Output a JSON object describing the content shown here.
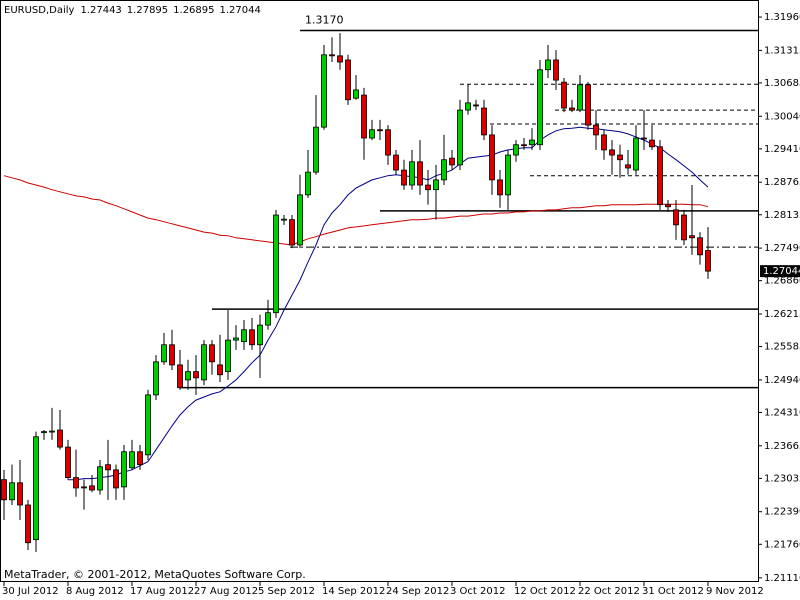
{
  "chart_data": {
    "type": "candlestick",
    "symbol": "EURUSD,Daily",
    "watermark": "MetaTrader, © 2001-2012, MetaQuotes Software Corp.",
    "categories": [
      "30 Jul 2012",
      null,
      null,
      null,
      null,
      null,
      null,
      null,
      "8 Aug 2012",
      null,
      null,
      null,
      null,
      null,
      null,
      null,
      "17 Aug 2012",
      null,
      null,
      null,
      null,
      null,
      null,
      null,
      "27 Aug 2012",
      null,
      null,
      null,
      null,
      null,
      null,
      null,
      "5 Sep 2012",
      null,
      null,
      null,
      null,
      null,
      null,
      null,
      "14 Sep 2012",
      null,
      null,
      null,
      null,
      null,
      null,
      null,
      "24 Sep 2012",
      null,
      null,
      null,
      null,
      null,
      null,
      null,
      "3 Oct 2012",
      null,
      null,
      null,
      null,
      null,
      null,
      null,
      "12 Oct 2012",
      null,
      null,
      null,
      null,
      null,
      null,
      null,
      "22 Oct 2012",
      null,
      null,
      null,
      null,
      null,
      null,
      null,
      "31 Oct 2012",
      null,
      null,
      null,
      null,
      null,
      null,
      null,
      "9 Nov 2012"
    ],
    "open": [
      1.2301,
      1.2262,
      1.2295,
      1.2252,
      1.2185,
      1.2392,
      1.2394,
      1.2397,
      1.2364,
      1.2305,
      1.2287,
      1.2289,
      1.2281,
      1.233,
      1.232,
      1.2287,
      1.2324,
      1.2355,
      1.2349,
      1.2465,
      1.2529,
      1.2562,
      1.2523,
      1.2494,
      1.251,
      1.2494,
      1.2562,
      1.2523,
      1.251,
      1.2571,
      1.2568,
      1.2591,
      1.2562,
      1.26,
      1.2624,
      1.2804,
      1.2804,
      1.2755,
      1.2852,
      1.2896,
      1.2983,
      1.3123,
      1.3121,
      1.3113,
      1.3039,
      1.3045,
      1.2962,
      1.2978,
      1.2978,
      1.2929,
      1.29,
      1.2871,
      1.2916,
      1.2871,
      1.2862,
      1.2881,
      1.2923,
      1.291,
      1.3016,
      1.3026,
      1.302,
      1.2968,
      1.2881,
      1.2852,
      1.2929,
      1.2949,
      1.2949,
      1.2949,
      1.3094,
      1.3113,
      1.307,
      1.302,
      1.3016,
      1.3065,
      1.2987,
      1.2968,
      1.2939,
      1.2929,
      1.291,
      1.29,
      1.2962,
      1.2958,
      1.2945,
      1.2833,
      1.2823,
      1.2813,
      1.2773,
      1.2769,
      1.27443
    ],
    "high": [
      1.232,
      1.233,
      1.2339,
      1.2262,
      1.2394,
      1.2397,
      1.244,
      1.2436,
      1.2378,
      1.2359,
      1.2301,
      1.231,
      1.2339,
      1.2378,
      1.233,
      1.2368,
      1.2378,
      1.2368,
      1.2475,
      1.2542,
      1.2585,
      1.2591,
      1.2552,
      1.2533,
      1.2542,
      1.2571,
      1.2571,
      1.2581,
      1.2629,
      1.26,
      1.261,
      1.2614,
      1.262,
      1.2649,
      1.2823,
      1.2813,
      1.2813,
      1.2891,
      1.2939,
      1.3045,
      1.3142,
      1.3157,
      1.3165,
      1.3123,
      1.3084,
      1.3059,
      1.2997,
      1.2997,
      1.2987,
      1.2939,
      1.292,
      1.2939,
      1.2958,
      1.29,
      1.291,
      1.2968,
      1.2939,
      1.3036,
      1.3065,
      1.3036,
      1.3036,
      1.2987,
      1.29,
      1.2939,
      1.2958,
      1.2962,
      1.2981,
      1.3113,
      1.3142,
      1.3132,
      1.3078,
      1.3036,
      1.3084,
      1.307,
      1.3016,
      1.2978,
      1.2958,
      1.2949,
      1.2939,
      1.2987,
      1.3016,
      1.2987,
      1.2958,
      1.2842,
      1.2842,
      1.2823,
      1.2871,
      1.278,
      1.27895
    ],
    "low": [
      1.2223,
      1.2252,
      1.2223,
      1.2165,
      1.2161,
      1.2378,
      1.2378,
      1.2359,
      1.2301,
      1.2268,
      1.2243,
      1.2277,
      1.2272,
      1.2262,
      1.2262,
      1.2262,
      1.232,
      1.232,
      1.2339,
      1.2455,
      1.2523,
      1.2513,
      1.2475,
      1.2475,
      1.2465,
      1.2484,
      1.2504,
      1.249,
      1.2494,
      1.2552,
      1.2552,
      1.2552,
      1.2498,
      1.2591,
      1.2614,
      1.2794,
      1.2749,
      1.2749,
      1.2846,
      1.2891,
      1.2978,
      1.3109,
      1.3094,
      1.3026,
      1.3036,
      1.292,
      1.2958,
      1.2958,
      1.291,
      1.2891,
      1.2862,
      1.2862,
      1.2852,
      1.2833,
      1.2804,
      1.2871,
      1.29,
      1.29,
      1.3007,
      1.3016,
      1.2958,
      1.2852,
      1.2827,
      1.2823,
      1.2916,
      1.2939,
      1.2939,
      1.2939,
      1.3078,
      1.3055,
      1.3012,
      1.3012,
      1.3012,
      1.2978,
      1.2939,
      1.292,
      1.2891,
      1.2885,
      1.2891,
      1.2891,
      1.2939,
      1.2939,
      1.2823,
      1.2819,
      1.2765,
      1.2755,
      1.2736,
      1.2717,
      1.26895
    ],
    "close": [
      1.2262,
      1.2295,
      1.2252,
      1.2179,
      1.2384,
      1.2394,
      1.2395,
      1.2364,
      1.2305,
      1.2285,
      1.2285,
      1.2281,
      1.2326,
      1.232,
      1.2285,
      1.2355,
      1.2355,
      1.233,
      1.2465,
      1.2529,
      1.2562,
      1.2523,
      1.2479,
      1.251,
      1.2498,
      1.2562,
      1.2529,
      1.2504,
      1.2571,
      1.2575,
      1.2591,
      1.2562,
      1.26,
      1.2624,
      1.2813,
      1.2805,
      1.2755,
      1.2852,
      1.2896,
      1.2983,
      1.3123,
      1.3121,
      1.3109,
      1.3036,
      1.3055,
      1.2962,
      1.2978,
      1.2976,
      1.2929,
      1.29,
      1.2871,
      1.2916,
      1.2871,
      1.2862,
      1.2881,
      1.292,
      1.291,
      1.3016,
      1.303,
      1.3024,
      1.2968,
      1.2881,
      1.2852,
      1.2929,
      1.2949,
      1.2947,
      1.2958,
      1.3094,
      1.3113,
      1.3074,
      1.302,
      1.3016,
      1.3065,
      1.2987,
      1.2968,
      1.2939,
      1.2929,
      1.292,
      1.2904,
      1.2962,
      1.296,
      1.2945,
      1.2833,
      1.2829,
      1.2794,
      1.2765,
      1.2769,
      1.2736,
      1.27044
    ],
    "up_color": "#00cc00",
    "down_color": "#dd0000",
    "overlays": [
      {
        "color": "#00008b",
        "values": [
          null,
          null,
          null,
          null,
          null,
          null,
          null,
          null,
          1.2301,
          1.2301,
          1.2303,
          1.2303,
          1.2305,
          1.2307,
          1.231,
          1.2316,
          1.232,
          1.2328,
          1.2336,
          1.2359,
          1.2382,
          1.2405,
          1.2426,
          1.2442,
          1.2455,
          1.2461,
          1.2467,
          1.2471,
          1.2482,
          1.2494,
          1.251,
          1.2527,
          1.2542,
          1.2571,
          1.2597,
          1.2629,
          1.2658,
          1.2687,
          1.2722,
          1.2755,
          1.2794,
          1.2817,
          1.2833,
          1.2852,
          1.2865,
          1.2873,
          1.2881,
          1.2885,
          1.2889,
          1.2891,
          1.2889,
          1.2887,
          1.2885,
          1.2881,
          1.2889,
          1.2894,
          1.29,
          1.2912,
          1.2923,
          1.2925,
          1.2927,
          1.2929,
          1.2935,
          1.2939,
          1.2941,
          1.2943,
          1.2943,
          1.2958,
          1.2968,
          1.2976,
          1.298,
          1.2981,
          1.2983,
          1.2981,
          1.298,
          1.2978,
          1.2976,
          1.2974,
          1.297,
          1.2964,
          1.2958,
          1.295,
          1.2943,
          1.2931,
          1.292,
          1.2908,
          1.2896,
          1.2881,
          1.2867
        ]
      },
      {
        "color": "#cc0000",
        "values": [
          1.2889,
          1.2885,
          1.2881,
          1.2875,
          1.2871,
          1.2867,
          1.2862,
          1.2858,
          1.2854,
          1.285,
          1.2848,
          1.2844,
          1.2842,
          1.2836,
          1.2831,
          1.2825,
          1.2819,
          1.2813,
          1.2807,
          1.2804,
          1.28,
          1.2796,
          1.2792,
          1.2788,
          1.2784,
          1.278,
          1.2778,
          1.2774,
          1.2773,
          1.2769,
          1.2767,
          1.2765,
          1.2763,
          1.2761,
          1.2759,
          1.2757,
          1.2755,
          1.2761,
          1.2767,
          1.2771,
          1.2776,
          1.278,
          1.2784,
          1.2788,
          1.279,
          1.2792,
          1.2794,
          1.2796,
          1.2798,
          1.28,
          1.2802,
          1.2804,
          1.2804,
          1.2805,
          1.2807,
          1.2807,
          1.2809,
          1.2811,
          1.2811,
          1.2813,
          1.2815,
          1.2815,
          1.2817,
          1.2817,
          1.2819,
          1.2819,
          1.2821,
          1.2821,
          1.2823,
          1.2823,
          1.2825,
          1.2827,
          1.2827,
          1.2829,
          1.2831,
          1.2831,
          1.2833,
          1.2833,
          1.2833,
          1.2833,
          1.2834,
          1.2834,
          1.2834,
          1.2834,
          1.2834,
          1.2834,
          1.2833,
          1.2833,
          1.2829
        ]
      }
    ],
    "levels": [
      {
        "value": 1.317,
        "label": "1.3170",
        "style": "solid"
      },
      {
        "value": 1.2821,
        "style": "solid"
      },
      {
        "value": 1.2631,
        "style": "solid"
      },
      {
        "value": 1.2479,
        "style": "solid"
      },
      {
        "value": 1.3066,
        "style": "dashed"
      },
      {
        "value": 1.3016,
        "style": "dashed"
      },
      {
        "value": 1.2989,
        "style": "dashed"
      },
      {
        "value": 1.2889,
        "style": "dashed"
      },
      {
        "value": 1.2751,
        "style": "dashdot"
      }
    ],
    "ylim": [
      1.2103,
      1.3229
    ],
    "yticks": [
      {
        "value": 1.3196,
        "label": "1.31960"
      },
      1.31315,
      1.30685,
      {
        "value": 1.3004,
        "label": "1.30040"
      },
      {
        "value": 1.2941,
        "label": "1.29410"
      },
      1.28765,
      1.28135,
      {
        "value": 1.2749,
        "label": "1.27490"
      },
      {
        "value": 1.2686,
        "label": "1.26860"
      },
      1.26215,
      1.25585,
      {
        "value": 1.2494,
        "label": "1.24940"
      },
      {
        "value": 1.2431,
        "label": "1.24310"
      },
      1.23665,
      1.23035,
      {
        "value": 1.2239,
        "label": "1.22390"
      },
      {
        "value": 1.2176,
        "label": "1.21760"
      },
      {
        "value": 1.2111,
        "label": "1.21110"
      }
    ],
    "grid": false
  }
}
